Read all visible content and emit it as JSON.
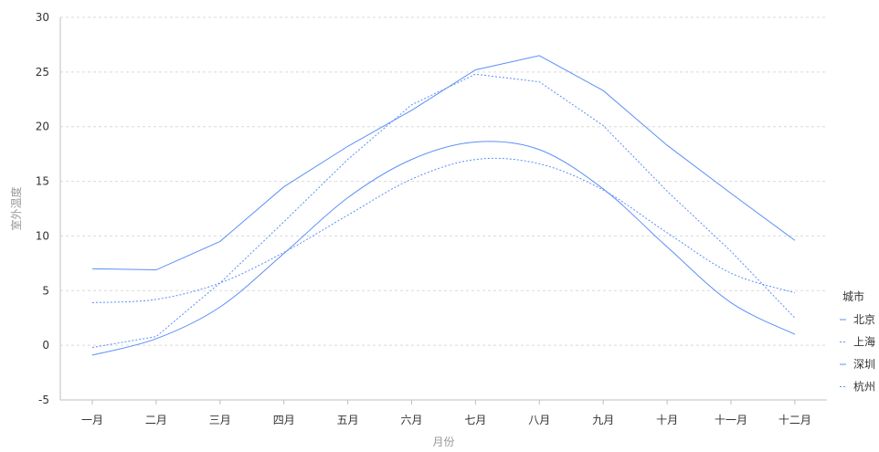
{
  "chart_data": {
    "type": "line",
    "xlabel": "月份",
    "ylabel": "室外温度",
    "ylim": [
      -5,
      30
    ],
    "yticks": [
      -5,
      0,
      5,
      10,
      15,
      20,
      25,
      30
    ],
    "categories": [
      "一月",
      "二月",
      "三月",
      "四月",
      "五月",
      "六月",
      "七月",
      "八月",
      "九月",
      "十月",
      "十一月",
      "十二月"
    ],
    "grid": true,
    "legend": {
      "title": "城市",
      "position": "right"
    },
    "series": [
      {
        "name": "北京",
        "color": "#5b8ff9",
        "style": "solid",
        "smooth": false,
        "values": [
          7.0,
          6.9,
          9.5,
          14.5,
          18.2,
          21.5,
          25.2,
          26.5,
          23.3,
          18.3,
          13.9,
          9.6
        ]
      },
      {
        "name": "上海",
        "color": "#5b8ff9",
        "style": "dotted",
        "smooth": false,
        "values": [
          -0.2,
          0.8,
          5.7,
          11.3,
          17.0,
          22.0,
          24.8,
          24.1,
          20.1,
          14.1,
          8.6,
          2.5
        ]
      },
      {
        "name": "深圳",
        "color": "#5b8ff9",
        "style": "solid",
        "smooth": true,
        "values": [
          -0.9,
          0.6,
          3.5,
          8.4,
          13.5,
          17.0,
          18.6,
          17.9,
          14.3,
          9.0,
          3.9,
          1.0
        ]
      },
      {
        "name": "杭州",
        "color": "#5b8ff9",
        "style": "dotted",
        "smooth": true,
        "values": [
          3.9,
          4.2,
          5.7,
          8.5,
          11.9,
          15.2,
          17.0,
          16.6,
          14.2,
          10.3,
          6.6,
          4.8
        ]
      }
    ]
  }
}
